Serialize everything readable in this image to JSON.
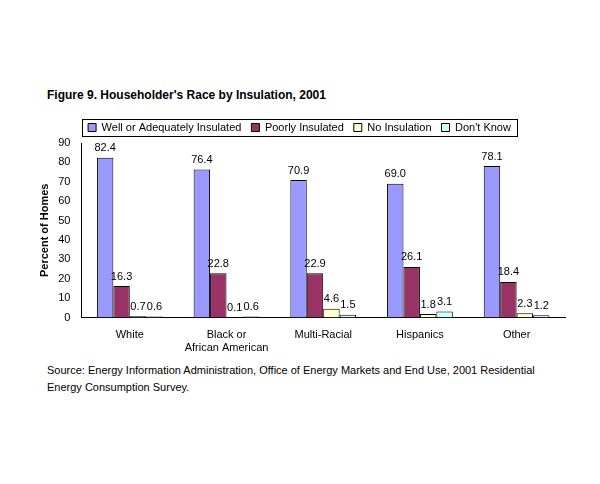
{
  "chart_data": {
    "type": "bar",
    "title": "Figure 9.  Householder's Race by Insulation, 2001",
    "y_label": "Percent of Homes",
    "source": "Source:  Energy Information Administration, Office of Energy Markets and End Use, 2001 Residential Energy Consumption Survey.",
    "categories": [
      "White",
      "Black or African American",
      "Multi-Racial",
      "Hispanics",
      "Other"
    ],
    "series": [
      {
        "name": "Well or Adequately Insulated",
        "color": "#9999ff",
        "values": [
          82.4,
          76.4,
          70.9,
          69.0,
          78.1
        ],
        "value_labels": [
          "82.4",
          "76.4",
          "70.9",
          "69.0",
          "78.1"
        ]
      },
      {
        "name": "Poorly Insulated",
        "color": "#993366",
        "values": [
          16.3,
          22.8,
          22.9,
          26.1,
          18.4
        ],
        "value_labels": [
          "16.3",
          "22.8",
          "22.9",
          "26.1",
          "18.4"
        ]
      },
      {
        "name": "No Insulation",
        "color": "#ffffcc",
        "values": [
          0.7,
          0.1,
          4.6,
          1.8,
          2.3
        ],
        "value_labels": [
          "0.7",
          "0.1",
          "4.6",
          "1.8",
          "2.3"
        ]
      },
      {
        "name": "Don't Know",
        "color": "#ccffff",
        "values": [
          0.6,
          0.6,
          1.5,
          3.1,
          1.2
        ],
        "value_labels": [
          "0.6",
          "0.6",
          "1.5",
          "3.1",
          "1.2"
        ]
      }
    ],
    "ylim": [
      0,
      90
    ],
    "yticks": [
      0,
      10,
      20,
      30,
      40,
      50,
      60,
      70,
      80,
      90
    ],
    "grid": false,
    "legend": "top",
    "data_labels": true
  }
}
